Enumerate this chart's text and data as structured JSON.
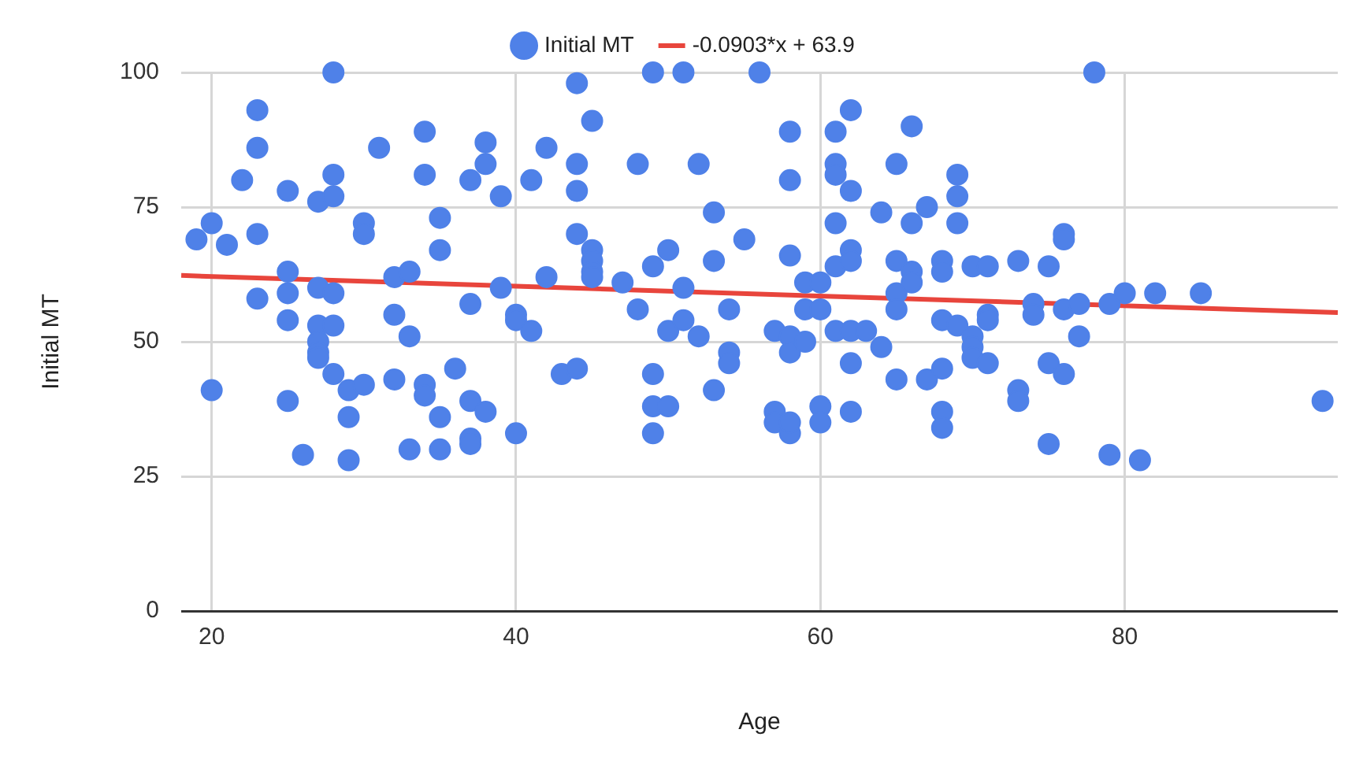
{
  "chart_data": {
    "type": "scatter",
    "xlabel": "Age",
    "ylabel": "Initial MT",
    "xlim": [
      18,
      94
    ],
    "xticks": [
      20,
      40,
      60,
      80
    ],
    "ylim": [
      0,
      100
    ],
    "yticks": [
      0,
      25,
      50,
      75,
      100
    ],
    "grid": true,
    "legend": "top",
    "marker": "circle",
    "series": [
      {
        "name": "Initial MT",
        "color": "#4f81e8",
        "x": [
          19,
          20,
          20,
          21,
          22,
          23,
          23,
          23,
          23,
          25,
          25,
          25,
          25,
          25,
          26,
          27,
          27,
          27,
          27,
          27,
          27,
          28,
          28,
          28,
          28,
          28,
          28,
          29,
          29,
          29,
          30,
          30,
          30,
          31,
          32,
          32,
          32,
          33,
          33,
          33,
          34,
          34,
          34,
          34,
          35,
          35,
          35,
          35,
          36,
          37,
          37,
          37,
          37,
          37,
          38,
          38,
          38,
          39,
          39,
          40,
          40,
          40,
          41,
          41,
          42,
          42,
          43,
          44,
          44,
          44,
          44,
          44,
          45,
          45,
          45,
          45,
          45,
          47,
          48,
          48,
          49,
          49,
          49,
          49,
          49,
          50,
          50,
          50,
          51,
          51,
          51,
          52,
          52,
          53,
          53,
          53,
          54,
          54,
          54,
          55,
          56,
          57,
          57,
          57,
          58,
          58,
          58,
          58,
          58,
          58,
          58,
          59,
          59,
          59,
          60,
          60,
          60,
          60,
          61,
          61,
          61,
          61,
          61,
          61,
          62,
          62,
          62,
          62,
          62,
          62,
          62,
          63,
          64,
          64,
          65,
          65,
          65,
          65,
          65,
          66,
          66,
          66,
          66,
          67,
          67,
          68,
          68,
          68,
          68,
          68,
          68,
          69,
          69,
          69,
          69,
          70,
          70,
          70,
          70,
          71,
          71,
          71,
          71,
          73,
          73,
          73,
          74,
          74,
          75,
          75,
          75,
          76,
          76,
          76,
          76,
          77,
          77,
          78,
          79,
          79,
          80,
          81,
          82,
          85,
          93
        ],
        "values": [
          69,
          41,
          72,
          68,
          80,
          93,
          86,
          70,
          58,
          78,
          63,
          59,
          54,
          39,
          29,
          76,
          60,
          53,
          50,
          48,
          47,
          81,
          77,
          100,
          59,
          53,
          44,
          41,
          36,
          28,
          72,
          70,
          42,
          86,
          62,
          55,
          43,
          63,
          51,
          30,
          89,
          81,
          42,
          40,
          73,
          67,
          36,
          30,
          45,
          80,
          57,
          39,
          32,
          31,
          87,
          83,
          37,
          77,
          60,
          55,
          54,
          33,
          80,
          52,
          86,
          62,
          44,
          98,
          83,
          78,
          70,
          45,
          91,
          67,
          65,
          63,
          62,
          61,
          83,
          56,
          100,
          64,
          44,
          38,
          33,
          67,
          52,
          38,
          100,
          60,
          54,
          83,
          51,
          74,
          65,
          41,
          56,
          48,
          46,
          69,
          100,
          52,
          37,
          35,
          89,
          80,
          66,
          51,
          48,
          33,
          35,
          61,
          56,
          50,
          61,
          56,
          38,
          35,
          89,
          83,
          81,
          72,
          64,
          52,
          93,
          78,
          67,
          65,
          52,
          46,
          37,
          52,
          74,
          49,
          83,
          65,
          59,
          56,
          43,
          90,
          72,
          63,
          61,
          75,
          43,
          65,
          63,
          54,
          45,
          37,
          34,
          81,
          77,
          72,
          53,
          64,
          51,
          49,
          47,
          64,
          55,
          54,
          46,
          65,
          41,
          39,
          57,
          55,
          64,
          46,
          31,
          70,
          69,
          56,
          44,
          51,
          57,
          100,
          57,
          29,
          59,
          28,
          59,
          59,
          39
        ]
      },
      {
        "name": "-0.0903*x + 63.9",
        "type": "line",
        "color": "#e8453c",
        "marker": "none",
        "x": [
          18,
          94
        ],
        "values": [
          62.3,
          55.4
        ]
      }
    ]
  }
}
